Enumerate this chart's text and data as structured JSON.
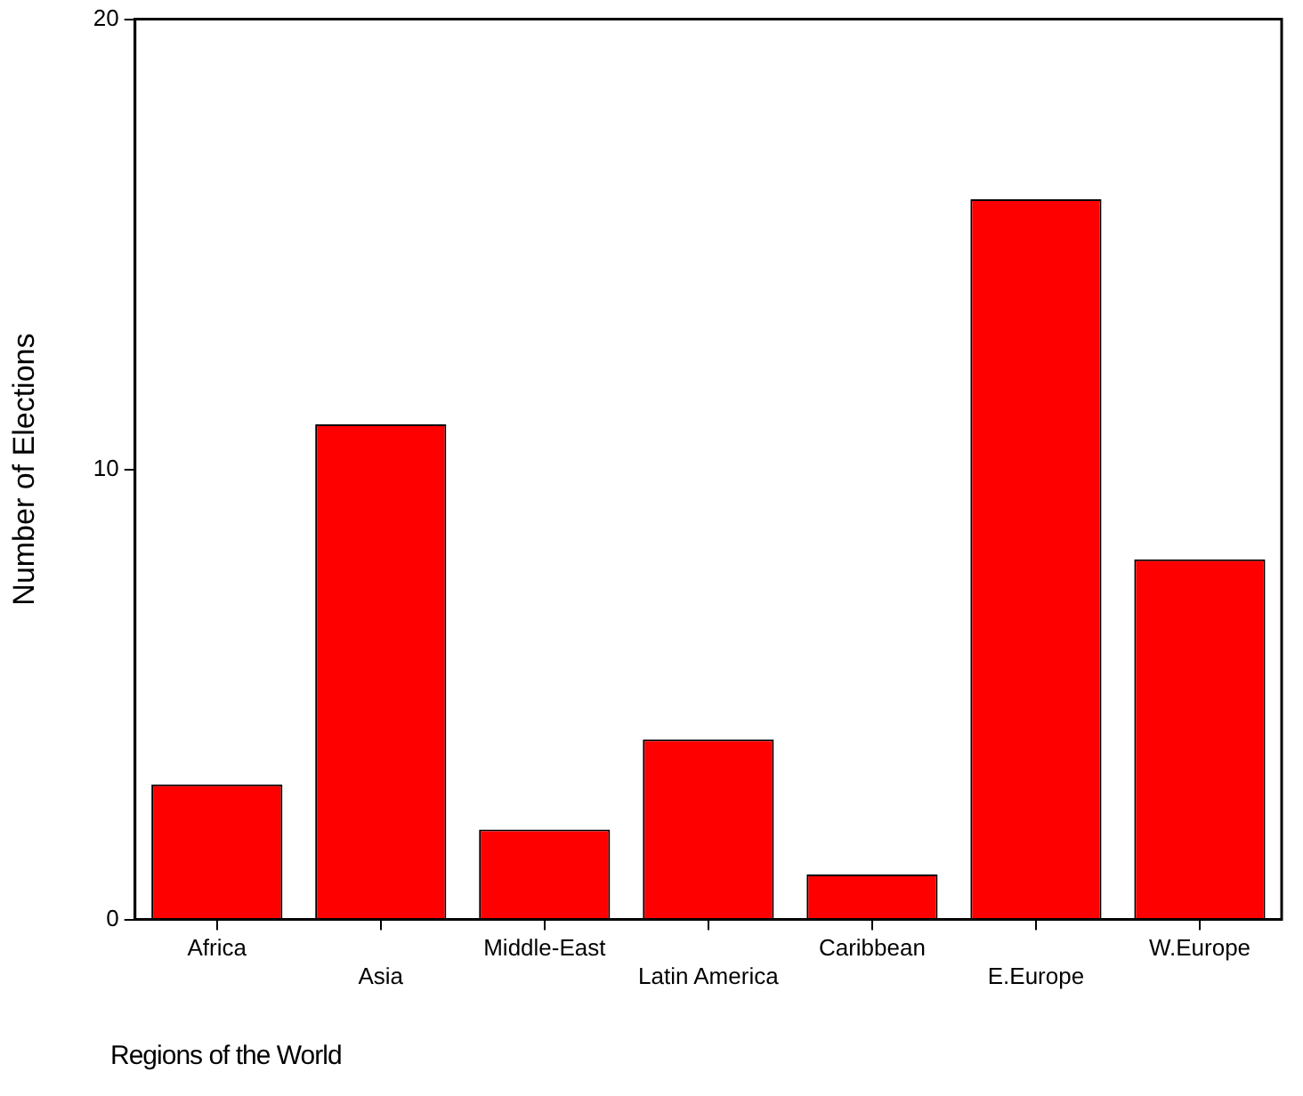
{
  "chart_data": {
    "type": "bar",
    "xlabel": "Regions of the World",
    "ylabel": "Number of Elections",
    "categories": [
      "Africa",
      "Asia",
      "Middle-East",
      "Latin America",
      "Caribbean",
      "E.Europe",
      "W.Europe"
    ],
    "values": [
      3,
      11,
      2,
      4,
      1,
      16,
      8
    ],
    "color": "#ff0000",
    "ylim": [
      0,
      20
    ],
    "yticks": [
      0,
      10,
      20
    ],
    "grid": false,
    "legend": false
  }
}
